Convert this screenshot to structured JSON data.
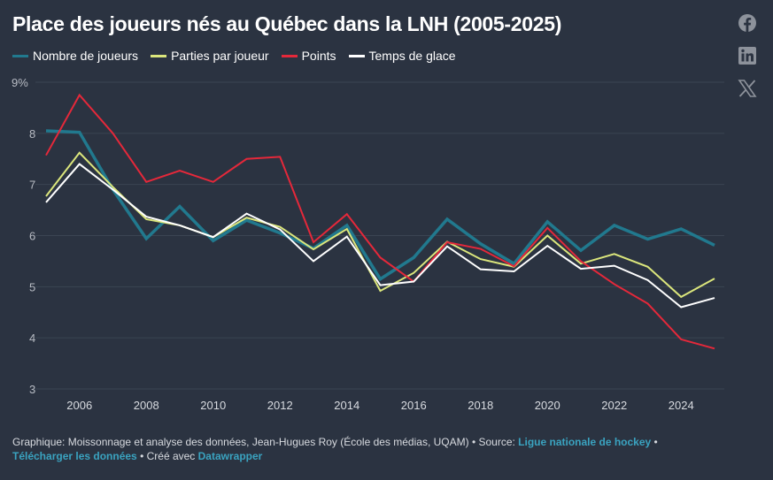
{
  "colors": {
    "background": "#2b3341",
    "grid": "#3b4452",
    "axis_text": "#b8bcc4",
    "link": "#3aa3c0"
  },
  "social": [
    {
      "icon": "facebook-icon"
    },
    {
      "icon": "linkedin-icon"
    },
    {
      "icon": "x-icon"
    }
  ],
  "chart_data": {
    "type": "line",
    "title": "Place des joueurs nés au Québec dans la LNH (2005-2025)",
    "xlabel": "",
    "ylabel": "",
    "x": [
      2005,
      2006,
      2007,
      2008,
      2009,
      2010,
      2011,
      2012,
      2013,
      2014,
      2015,
      2016,
      2017,
      2018,
      2019,
      2020,
      2021,
      2022,
      2023,
      2024,
      2025
    ],
    "xticks": [
      2006,
      2008,
      2010,
      2012,
      2014,
      2016,
      2018,
      2020,
      2022,
      2024
    ],
    "yticks": [
      {
        "v": 3,
        "label": "3"
      },
      {
        "v": 4,
        "label": "4"
      },
      {
        "v": 5,
        "label": "5"
      },
      {
        "v": 6,
        "label": "6"
      },
      {
        "v": 7,
        "label": "7"
      },
      {
        "v": 8,
        "label": "8"
      },
      {
        "v": 9,
        "label": "9%"
      }
    ],
    "ylim": [
      3,
      9
    ],
    "grid": true,
    "legend_placement": "top-left",
    "series": [
      {
        "name": "Nombre de joueurs",
        "color": "#21798e",
        "values": [
          8.05,
          8.02,
          6.9,
          5.94,
          6.57,
          5.9,
          6.3,
          6.05,
          5.75,
          6.2,
          5.15,
          5.57,
          6.32,
          5.84,
          5.45,
          6.27,
          5.71,
          6.2,
          5.93,
          6.13,
          5.81
        ]
      },
      {
        "name": "Parties par joueur",
        "color": "#dbe67c",
        "values": [
          6.77,
          7.62,
          6.95,
          6.32,
          6.2,
          5.97,
          6.35,
          6.17,
          5.73,
          6.13,
          4.92,
          5.27,
          5.88,
          5.54,
          5.39,
          6.0,
          5.45,
          5.64,
          5.39,
          4.8,
          5.16
        ]
      },
      {
        "name": "Points",
        "color": "#e5283a",
        "values": [
          7.57,
          8.75,
          8.0,
          7.05,
          7.27,
          7.05,
          7.5,
          7.54,
          5.87,
          6.42,
          5.57,
          5.1,
          5.87,
          5.74,
          5.4,
          6.15,
          5.5,
          5.05,
          4.67,
          3.97,
          3.79
        ]
      },
      {
        "name": "Temps de glace",
        "color": "#ffffff",
        "values": [
          6.65,
          7.4,
          6.9,
          6.37,
          6.2,
          5.97,
          6.43,
          6.12,
          5.5,
          5.98,
          5.03,
          5.1,
          5.79,
          5.34,
          5.3,
          5.8,
          5.35,
          5.41,
          5.13,
          4.6,
          4.78
        ]
      }
    ]
  },
  "footer": {
    "prefix": "Graphique: Moissonnage et analyse des données, Jean-Hugues Roy (École des médias, UQAM) • Source: ",
    "source_link": "Ligue nationale de hockey",
    "sep": " •",
    "download_link": "Télécharger les données",
    "created": " • Créé avec ",
    "tool_link": "Datawrapper"
  }
}
